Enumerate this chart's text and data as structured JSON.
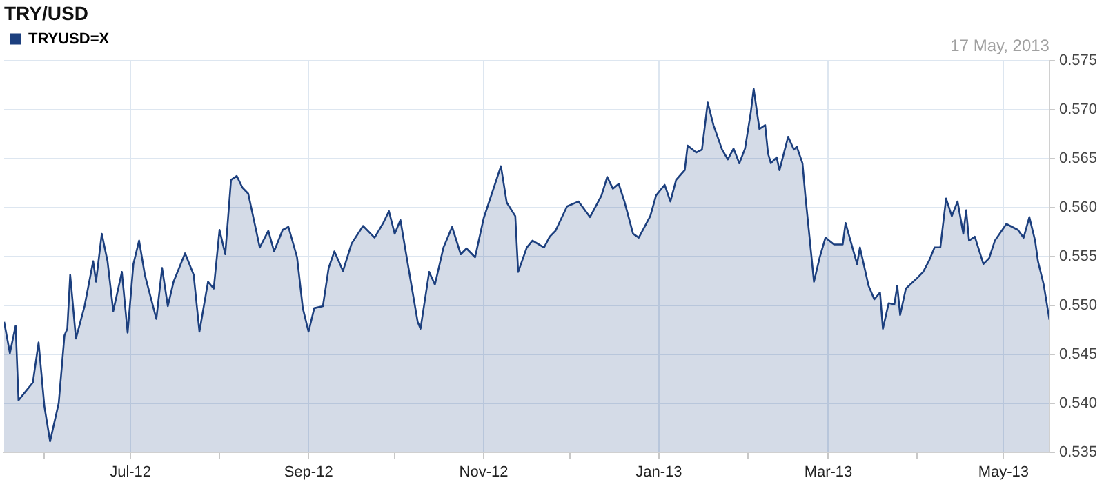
{
  "chart_data": {
    "type": "area",
    "title": "TRY/USD",
    "annotations": [
      "17 May, 2013"
    ],
    "x": [
      "2012-05-18",
      "2012-05-20",
      "2012-05-22",
      "2012-05-23",
      "2012-05-28",
      "2012-05-30",
      "2012-06-01",
      "2012-06-03",
      "2012-06-06",
      "2012-06-08",
      "2012-06-09",
      "2012-06-10",
      "2012-06-12",
      "2012-06-15",
      "2012-06-18",
      "2012-06-19",
      "2012-06-21",
      "2012-06-23",
      "2012-06-25",
      "2012-06-28",
      "2012-06-30",
      "2012-07-02",
      "2012-07-04",
      "2012-07-06",
      "2012-07-10",
      "2012-07-12",
      "2012-07-14",
      "2012-07-16",
      "2012-07-20",
      "2012-07-23",
      "2012-07-25",
      "2012-07-28",
      "2012-07-30",
      "2012-08-01",
      "2012-08-03",
      "2012-08-05",
      "2012-08-07",
      "2012-08-09",
      "2012-08-11",
      "2012-08-14",
      "2012-08-15",
      "2012-08-18",
      "2012-08-20",
      "2012-08-23",
      "2012-08-25",
      "2012-08-28",
      "2012-08-30",
      "2012-09-01",
      "2012-09-03",
      "2012-09-06",
      "2012-09-08",
      "2012-09-10",
      "2012-09-13",
      "2012-09-16",
      "2012-09-20",
      "2012-09-24",
      "2012-09-27",
      "2012-09-29",
      "2012-10-01",
      "2012-10-03",
      "2012-10-05",
      "2012-10-09",
      "2012-10-10",
      "2012-10-13",
      "2012-10-15",
      "2012-10-18",
      "2012-10-21",
      "2012-10-24",
      "2012-10-26",
      "2012-10-29",
      "2012-11-01",
      "2012-11-07",
      "2012-11-09",
      "2012-11-12",
      "2012-11-13",
      "2012-11-16",
      "2012-11-18",
      "2012-11-22",
      "2012-11-24",
      "2012-11-26",
      "2012-11-30",
      "2012-12-04",
      "2012-12-08",
      "2012-12-12",
      "2012-12-14",
      "2012-12-16",
      "2012-12-18",
      "2012-12-20",
      "2012-12-23",
      "2012-12-25",
      "2012-12-29",
      "2012-12-31",
      "2013-01-03",
      "2013-01-05",
      "2013-01-07",
      "2013-01-10",
      "2013-01-11",
      "2013-01-14",
      "2013-01-16",
      "2013-01-18",
      "2013-01-20",
      "2013-01-23",
      "2013-01-25",
      "2013-01-27",
      "2013-01-29",
      "2013-01-31",
      "2013-02-02",
      "2013-02-03",
      "2013-02-05",
      "2013-02-07",
      "2013-02-08",
      "2013-02-09",
      "2013-02-11",
      "2013-02-12",
      "2013-02-15",
      "2013-02-17",
      "2013-02-18",
      "2013-02-20",
      "2013-02-21",
      "2013-02-24",
      "2013-02-26",
      "2013-02-28",
      "2013-03-03",
      "2013-03-06",
      "2013-03-07",
      "2013-03-09",
      "2013-03-11",
      "2013-03-12",
      "2013-03-15",
      "2013-03-17",
      "2013-03-19",
      "2013-03-20",
      "2013-03-22",
      "2013-03-24",
      "2013-03-25",
      "2013-03-26",
      "2013-03-28",
      "2013-04-01",
      "2013-04-03",
      "2013-04-05",
      "2013-04-07",
      "2013-04-09",
      "2013-04-11",
      "2013-04-13",
      "2013-04-15",
      "2013-04-17",
      "2013-04-18",
      "2013-04-19",
      "2013-04-21",
      "2013-04-24",
      "2013-04-26",
      "2013-04-28",
      "2013-05-02",
      "2013-05-06",
      "2013-05-08",
      "2013-05-10",
      "2013-05-12",
      "2013-05-13",
      "2013-05-15",
      "2013-05-16",
      "2013-05-17"
    ],
    "series": [
      {
        "name": "TRYUSD=X",
        "color": "#1c3f7e",
        "values": [
          0.5483,
          0.5451,
          0.5479,
          0.5403,
          0.5421,
          0.5462,
          0.5397,
          0.5361,
          0.54,
          0.5469,
          0.5476,
          0.5531,
          0.5466,
          0.5499,
          0.5545,
          0.5524,
          0.5573,
          0.5545,
          0.5494,
          0.5534,
          0.5472,
          0.5542,
          0.5566,
          0.5531,
          0.5486,
          0.5538,
          0.5499,
          0.5524,
          0.5553,
          0.5531,
          0.5473,
          0.5524,
          0.5517,
          0.5577,
          0.5552,
          0.5628,
          0.5632,
          0.562,
          0.5614,
          0.5573,
          0.5559,
          0.5576,
          0.5555,
          0.5577,
          0.558,
          0.5549,
          0.5497,
          0.5473,
          0.5497,
          0.5499,
          0.5538,
          0.5555,
          0.5535,
          0.5563,
          0.5581,
          0.5569,
          0.5584,
          0.5596,
          0.5573,
          0.5587,
          0.5552,
          0.5483,
          0.5476,
          0.5534,
          0.5521,
          0.5559,
          0.558,
          0.5552,
          0.5558,
          0.5549,
          0.5589,
          0.5642,
          0.5605,
          0.5591,
          0.5534,
          0.5559,
          0.5566,
          0.5559,
          0.557,
          0.5576,
          0.5601,
          0.5606,
          0.559,
          0.5612,
          0.5631,
          0.5619,
          0.5624,
          0.5606,
          0.5573,
          0.5569,
          0.5591,
          0.5612,
          0.5623,
          0.5606,
          0.5628,
          0.5638,
          0.5663,
          0.5656,
          0.5659,
          0.5707,
          0.5684,
          0.5659,
          0.5649,
          0.566,
          0.5645,
          0.566,
          0.5697,
          0.5721,
          0.568,
          0.5684,
          0.5655,
          0.5645,
          0.5651,
          0.5638,
          0.5672,
          0.5659,
          0.5662,
          0.5645,
          0.5612,
          0.5524,
          0.5549,
          0.5569,
          0.5562,
          0.5562,
          0.5584,
          0.5563,
          0.5542,
          0.5559,
          0.552,
          0.5506,
          0.5513,
          0.5476,
          0.5502,
          0.5501,
          0.552,
          0.549,
          0.5517,
          0.5528,
          0.5534,
          0.5545,
          0.5559,
          0.5559,
          0.5609,
          0.5591,
          0.5606,
          0.5573,
          0.5597,
          0.5566,
          0.557,
          0.5542,
          0.5548,
          0.5566,
          0.5583,
          0.5577,
          0.5569,
          0.559,
          0.5566,
          0.5545,
          0.5521,
          0.5503,
          0.5485
        ]
      }
    ],
    "xlim": [
      "2012-05-18",
      "2013-05-17"
    ],
    "xticks": [
      {
        "value": "2012-06-01",
        "label": null
      },
      {
        "value": "2012-07-01",
        "label": "Jul-12"
      },
      {
        "value": "2012-08-01",
        "label": null
      },
      {
        "value": "2012-09-01",
        "label": "Sep-12"
      },
      {
        "value": "2012-10-01",
        "label": null
      },
      {
        "value": "2012-11-01",
        "label": "Nov-12"
      },
      {
        "value": "2012-12-01",
        "label": null
      },
      {
        "value": "2013-01-01",
        "label": "Jan-13"
      },
      {
        "value": "2013-02-01",
        "label": null
      },
      {
        "value": "2013-03-01",
        "label": "Mar-13"
      },
      {
        "value": "2013-04-01",
        "label": null
      },
      {
        "value": "2013-05-01",
        "label": "May-13"
      }
    ],
    "ylim": [
      0.535,
      0.575
    ],
    "yticks": [
      0.535,
      {
        "value": 0.54,
        "label": "0.540"
      },
      0.545,
      {
        "value": 0.55,
        "label": "0.550"
      },
      0.555,
      {
        "value": 0.56,
        "label": "0.560"
      },
      0.565,
      {
        "value": 0.57,
        "label": "0.570"
      },
      0.575
    ],
    "grid": true,
    "legend": "top left",
    "marker": "none",
    "line_style": "solid"
  }
}
